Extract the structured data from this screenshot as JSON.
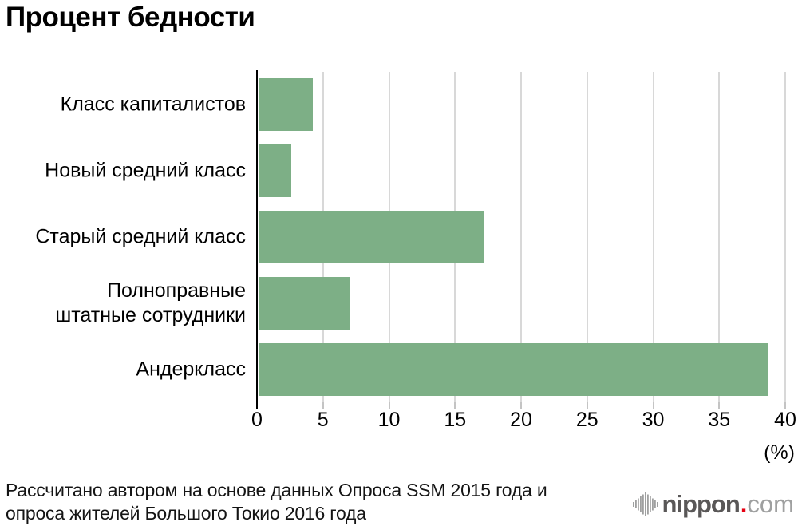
{
  "title": "Процент бедности",
  "chart_data": {
    "type": "bar",
    "orientation": "horizontal",
    "title": "Процент бедности",
    "categories": [
      "Класс капиталистов",
      "Новый средний класс",
      "Старый средний класс",
      "Полноправные штатные сотрудники",
      "Андеркласс"
    ],
    "category_label_lines": [
      [
        "Класс капиталистов"
      ],
      [
        "Новый средний класс"
      ],
      [
        "Старый средний класс"
      ],
      [
        "Полноправные",
        "штатные сотрудники"
      ],
      [
        "Андеркласс"
      ]
    ],
    "values": [
      4.2,
      2.6,
      17.2,
      7.0,
      38.7
    ],
    "xlabel": "(%)",
    "xlim": [
      0,
      40
    ],
    "xticks": [
      0,
      5,
      10,
      15,
      20,
      25,
      30,
      35,
      40
    ],
    "grid": "vertical",
    "legend": "none",
    "bar_color": "#7daf86"
  },
  "colors": {
    "bar": "#7daf86",
    "gridline": "#d8d8d8",
    "tick": "#c4c4c4",
    "axis": "#000000",
    "logo_dark": "#595757",
    "logo_light": "#9fa0a0",
    "logo_dot": "#e60012"
  },
  "footer": {
    "line1": "Рассчитано автором на основе данных Опроса SSM 2015 года и",
    "line2": "опроса жителей Большого Токио 2016 года"
  },
  "logo": {
    "name": "nippon",
    "dot": ".",
    "tld": "com"
  }
}
